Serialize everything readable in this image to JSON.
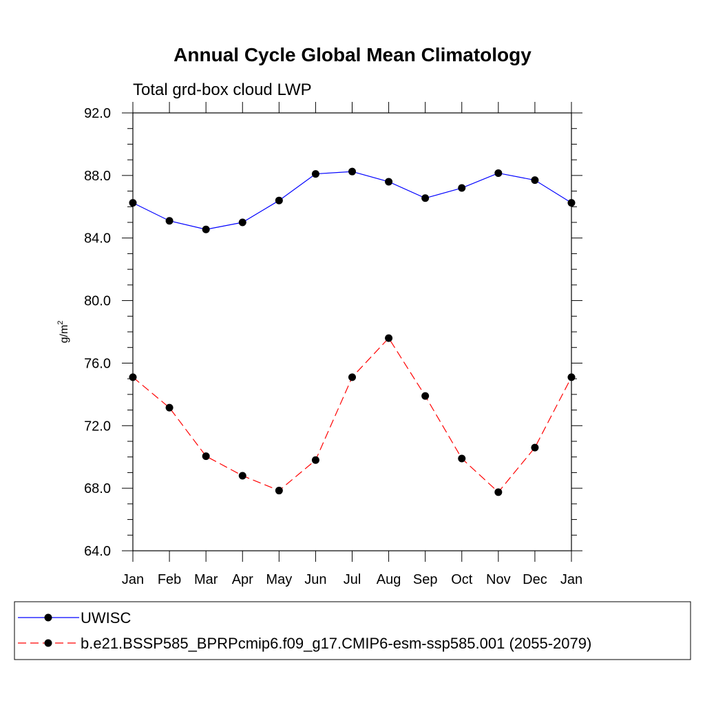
{
  "chart_data": {
    "type": "line",
    "title": "Annual Cycle Global Mean Climatology",
    "subtitle": "Total grd-box cloud LWP",
    "ylabel": "g/m",
    "ylabel_sup": "2",
    "xlabel": "",
    "categories": [
      "Jan",
      "Feb",
      "Mar",
      "Apr",
      "May",
      "Jun",
      "Jul",
      "Aug",
      "Sep",
      "Oct",
      "Nov",
      "Dec",
      "Jan"
    ],
    "ylim": [
      64.0,
      92.0
    ],
    "yticks": [
      "64.0",
      "68.0",
      "72.0",
      "76.0",
      "80.0",
      "84.0",
      "88.0",
      "92.0"
    ],
    "ytick_values": [
      64,
      68,
      72,
      76,
      80,
      84,
      88,
      92
    ],
    "grid": false,
    "legend_position": "bottom",
    "series": [
      {
        "name": "UWISC",
        "color": "#0000ff",
        "dash": "solid",
        "marker": "filled-circle",
        "values": [
          86.25,
          85.1,
          84.55,
          85.0,
          86.4,
          88.1,
          88.25,
          87.6,
          86.55,
          87.2,
          88.15,
          87.7,
          86.25
        ]
      },
      {
        "name": "b.e21.BSSP585_BPRPcmip6.f09_g17.CMIP6-esm-ssp585.001 (2055-2079)",
        "color": "#ff0000",
        "dash": "dashed",
        "marker": "filled-circle",
        "values": [
          75.1,
          73.15,
          70.05,
          68.8,
          67.85,
          69.8,
          75.1,
          77.6,
          73.9,
          69.9,
          67.75,
          70.6,
          75.1
        ]
      }
    ]
  }
}
